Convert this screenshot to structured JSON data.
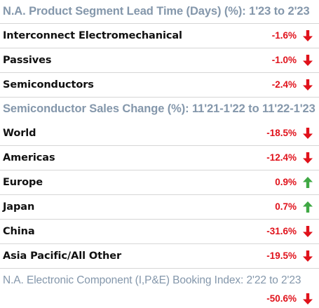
{
  "sections": [
    {
      "title": "N.A. Product Segment Lead Time (Days) (%): 1'23 to 2'23",
      "rows": [
        {
          "label": "Interconnect Electromechanical",
          "value": "-1.6%",
          "direction": "down"
        },
        {
          "label": "Passives",
          "value": "-1.0%",
          "direction": "down"
        },
        {
          "label": "Semiconductors",
          "value": "-2.4%",
          "direction": "down"
        }
      ]
    },
    {
      "title": "Semiconductor Sales Change (%): 11'21-1'22 to 11'22-1'23",
      "rows": [
        {
          "label": "World",
          "value": "-18.5%",
          "direction": "down"
        },
        {
          "label": "Americas",
          "value": "-12.4%",
          "direction": "down"
        },
        {
          "label": "Europe",
          "value": "0.9%",
          "direction": "up"
        },
        {
          "label": "Japan",
          "value": "0.7%",
          "direction": "up"
        },
        {
          "label": "China",
          "value": "-31.6%",
          "direction": "down"
        },
        {
          "label": "Asia Pacific/All Other",
          "value": "-19.5%",
          "direction": "down"
        }
      ]
    },
    {
      "title": "N.A. Electronic Component (I,P&E) Booking Index: 2'22 to 2'23",
      "rows": [
        {
          "label": "",
          "value": "-50.6%",
          "direction": "down"
        }
      ]
    }
  ],
  "colors": {
    "title": "#8497ab",
    "negative": "#e0121b",
    "positive": "#e0121b",
    "arrow_down": "#e0121b",
    "arrow_up": "#3fa844",
    "label": "#111111",
    "divider": "#d6d6d6"
  },
  "icons": {
    "down": "arrow-down-icon",
    "up": "arrow-up-icon"
  }
}
